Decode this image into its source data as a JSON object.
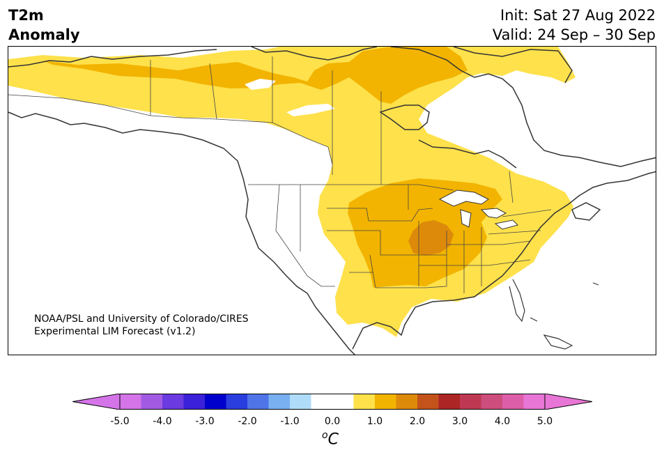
{
  "header": {
    "variable_line1": "T2m",
    "variable_line2": "Anomaly",
    "init": "Init: Sat 27 Aug 2022",
    "valid": "Valid: 24 Sep – 30 Sep"
  },
  "credit": {
    "line1": "NOAA/PSL and University of Colorado/CIRES",
    "line2": "Experimental LIM Forecast (v1.2)"
  },
  "colorbar": {
    "unit_symbol": "o",
    "unit_letter": "C",
    "tick_labels": [
      "-5.0",
      "-4.0",
      "-3.0",
      "-2.0",
      "-1.0",
      "0.0",
      "1.0",
      "2.0",
      "3.0",
      "4.0",
      "5.0"
    ],
    "colors": [
      "#d474e8",
      "#a35ae3",
      "#6b3ae0",
      "#3b22d8",
      "#0000cc",
      "#2a3ddf",
      "#4f74e8",
      "#78b0f2",
      "#afdcf9",
      "#ffffff",
      "#ffffff",
      "#fee14b",
      "#f2b400",
      "#dd8a0b",
      "#c3531a",
      "#ae2525",
      "#bf3853",
      "#cd4e7d",
      "#dd5ea8",
      "#e876d6"
    ],
    "under_color": "#d474e8",
    "over_color": "#e876d6"
  },
  "legend_levels": {
    "yellow": "#fee14b",
    "gold": "#f2b400",
    "orange": "#dd8a0b"
  }
}
